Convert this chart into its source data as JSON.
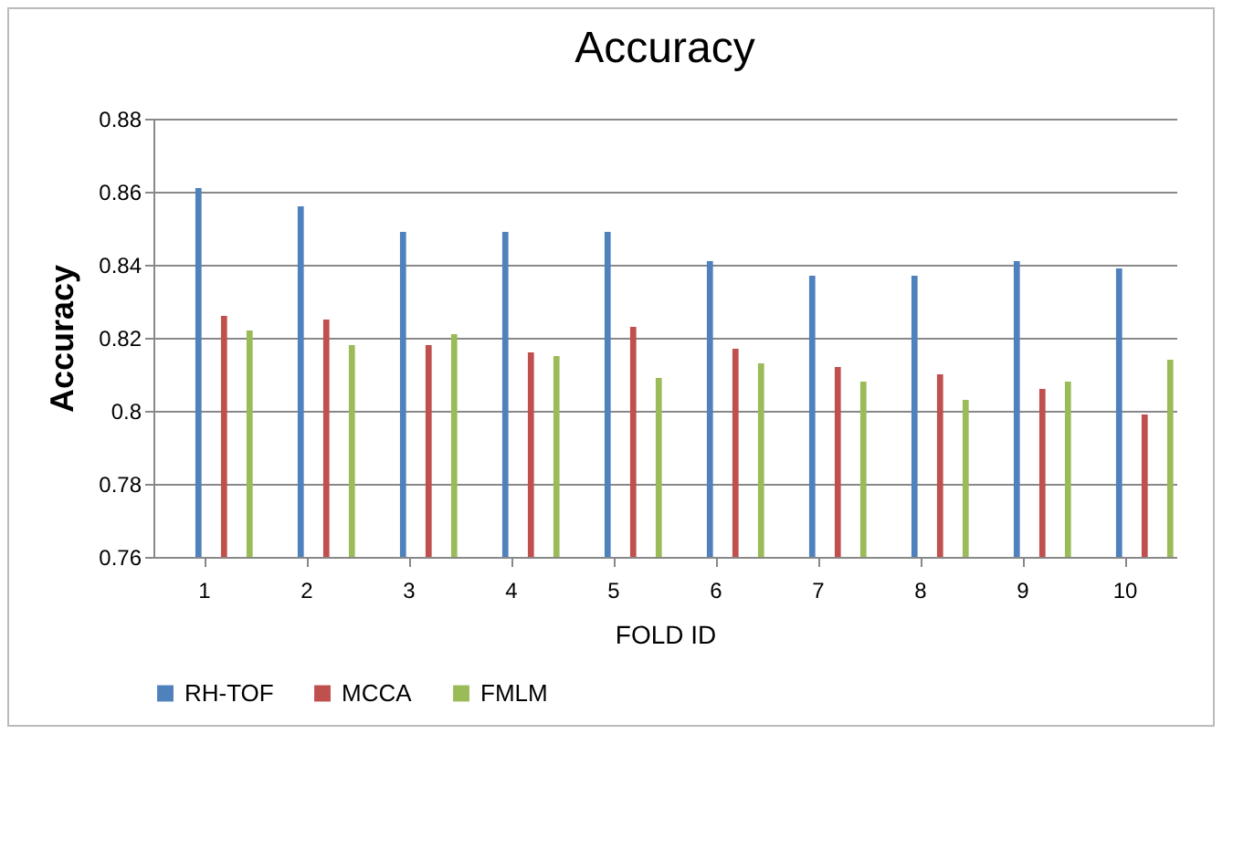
{
  "chart_data": {
    "type": "bar",
    "title": "Accuracy",
    "xlabel": "FOLD ID",
    "ylabel": "Accuracy",
    "categories": [
      "1",
      "2",
      "3",
      "4",
      "5",
      "6",
      "7",
      "8",
      "9",
      "10"
    ],
    "series": [
      {
        "name": "RH-TOF",
        "color": "#4f81bd",
        "values": [
          0.861,
          0.856,
          0.849,
          0.849,
          0.849,
          0.841,
          0.837,
          0.837,
          0.841,
          0.839
        ]
      },
      {
        "name": "MCCA",
        "color": "#c0504d",
        "values": [
          0.826,
          0.825,
          0.818,
          0.816,
          0.823,
          0.817,
          0.812,
          0.81,
          0.806,
          0.799
        ]
      },
      {
        "name": "FMLM",
        "color": "#9bbb59",
        "values": [
          0.822,
          0.818,
          0.821,
          0.815,
          0.809,
          0.813,
          0.808,
          0.803,
          0.808,
          0.814
        ]
      }
    ],
    "ylim": [
      0.76,
      0.88
    ],
    "yticks": [
      0.76,
      0.78,
      {
        "value": 0.8,
        "label": "0.8"
      },
      0.82,
      0.84,
      0.86,
      0.88
    ],
    "grid": "y",
    "legend": "bottom"
  }
}
